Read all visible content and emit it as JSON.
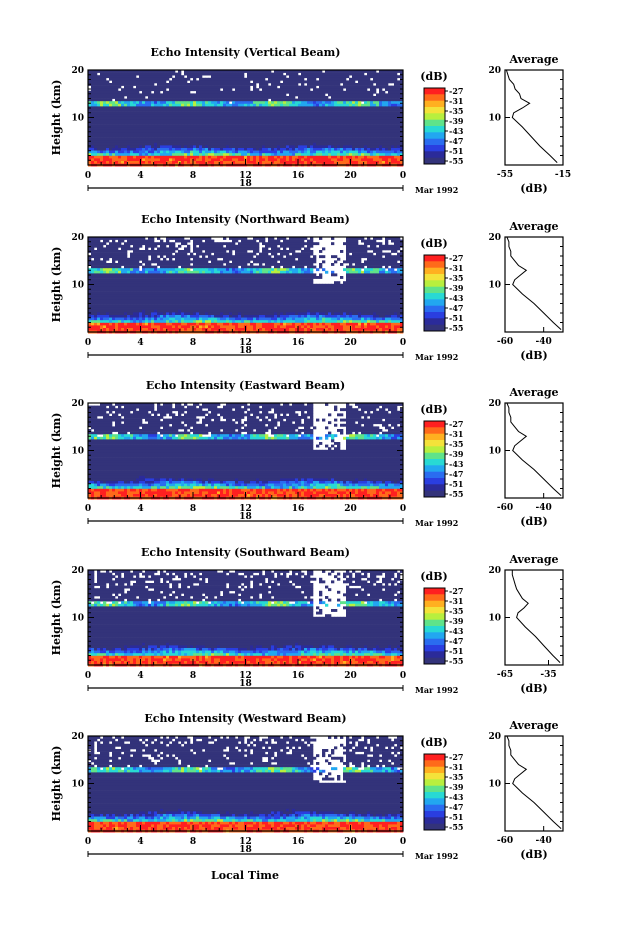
{
  "figure": {
    "xlabel": "Local Time",
    "date_label": "Mar 1992",
    "panel_ylabel": "Height (km)",
    "colorbar_unit": "(dB)",
    "colorbar_ticks": [
      "-27",
      "-31",
      "-35",
      "-39",
      "-43",
      "-47",
      "-51",
      "-55"
    ],
    "colorbar_colors": [
      "#ff2020",
      "#ff6a1a",
      "#ffb020",
      "#f4e23a",
      "#b8ef3e",
      "#5fe38a",
      "#28d9d4",
      "#22a7f0",
      "#2a6cf0",
      "#2a3ee0",
      "#2b2b9a",
      "#33337a"
    ],
    "avg_title": "Average",
    "avg_xlabel": "(dB)"
  },
  "chart_data": [
    {
      "type": "heatmap",
      "title": "Echo Intensity (Vertical Beam)",
      "ylabel": "Height (km)",
      "x_ticks": [
        "0",
        "4",
        "8",
        "12",
        "16",
        "20",
        "0"
      ],
      "y_ticks": [
        "20",
        "10"
      ],
      "day_label": "18",
      "xlim": [
        0,
        24
      ],
      "ylim": [
        0,
        20
      ],
      "colorbar": {
        "unit": "(dB)",
        "range": [
          -55,
          -27
        ]
      },
      "average_profile": {
        "title": "Average",
        "xlabel": "(dB)",
        "xlim": [
          -55,
          -15
        ],
        "x_ticks": [
          "-55",
          "-15"
        ],
        "y_ticks": [
          "20",
          "10"
        ],
        "height_km": [
          0.5,
          2,
          4,
          6,
          8,
          10,
          11,
          12,
          13,
          14,
          15,
          16,
          17,
          18,
          19,
          20
        ],
        "value_db": [
          -19,
          -24,
          -31,
          -37,
          -43,
          -50,
          -49,
          -43,
          -38,
          -44,
          -45,
          -48,
          -49,
          -52,
          -53,
          -54
        ]
      }
    },
    {
      "type": "heatmap",
      "title": "Echo Intensity (Northward Beam)",
      "ylabel": "Height (km)",
      "x_ticks": [
        "0",
        "4",
        "8",
        "12",
        "16",
        "20",
        "0"
      ],
      "y_ticks": [
        "20",
        "10"
      ],
      "day_label": "18",
      "xlim": [
        0,
        24
      ],
      "ylim": [
        0,
        20
      ],
      "colorbar": {
        "unit": "(dB)",
        "range": [
          -55,
          -27
        ]
      },
      "average_profile": {
        "title": "Average",
        "xlabel": "(dB)",
        "xlim": [
          -60,
          -30
        ],
        "x_ticks": [
          "-60",
          "-40"
        ],
        "y_ticks": [
          "20",
          "10"
        ],
        "height_km": [
          0.5,
          2,
          4,
          6,
          8,
          10,
          11,
          12,
          13,
          14,
          15,
          16,
          17,
          18,
          19,
          20
        ],
        "value_db": [
          -31,
          -35,
          -40,
          -45,
          -51,
          -56,
          -55,
          -52,
          -49,
          -53,
          -55,
          -57,
          -57,
          -58,
          -58,
          -59
        ]
      }
    },
    {
      "type": "heatmap",
      "title": "Echo Intensity (Eastward Beam)",
      "ylabel": "Height (km)",
      "x_ticks": [
        "0",
        "4",
        "8",
        "12",
        "16",
        "20",
        "0"
      ],
      "y_ticks": [
        "20",
        "10"
      ],
      "day_label": "18",
      "xlim": [
        0,
        24
      ],
      "ylim": [
        0,
        20
      ],
      "colorbar": {
        "unit": "(dB)",
        "range": [
          -55,
          -27
        ]
      },
      "average_profile": {
        "title": "Average",
        "xlabel": "(dB)",
        "xlim": [
          -60,
          -30
        ],
        "x_ticks": [
          "-60",
          "-40"
        ],
        "y_ticks": [
          "20",
          "10"
        ],
        "height_km": [
          0.5,
          2,
          4,
          6,
          8,
          10,
          11,
          12,
          13,
          14,
          15,
          16,
          17,
          18,
          19,
          20
        ],
        "value_db": [
          -31,
          -35,
          -40,
          -45,
          -51,
          -56,
          -55,
          -52,
          -49,
          -53,
          -55,
          -57,
          -57,
          -58,
          -58,
          -59
        ]
      }
    },
    {
      "type": "heatmap",
      "title": "Echo Intensity (Southward Beam)",
      "ylabel": "Height (km)",
      "x_ticks": [
        "0",
        "4",
        "8",
        "12",
        "16",
        "20",
        "0"
      ],
      "y_ticks": [
        "20",
        "10"
      ],
      "day_label": "18",
      "xlim": [
        0,
        24
      ],
      "ylim": [
        0,
        20
      ],
      "colorbar": {
        "unit": "(dB)",
        "range": [
          -55,
          -27
        ]
      },
      "average_profile": {
        "title": "Average",
        "xlabel": "(dB)",
        "xlim": [
          -65,
          -25
        ],
        "x_ticks": [
          "-65",
          "-35"
        ],
        "y_ticks": [
          "20",
          "10"
        ],
        "height_km": [
          0.5,
          2,
          4,
          6,
          8,
          10,
          11,
          12,
          13,
          14,
          15,
          16,
          17,
          18,
          19,
          20
        ],
        "value_db": [
          -27,
          -32,
          -38,
          -44,
          -51,
          -57,
          -56,
          -52,
          -49,
          -53,
          -55,
          -57,
          -58,
          -59,
          -60,
          -60
        ]
      }
    },
    {
      "type": "heatmap",
      "title": "Echo Intensity (Westward Beam)",
      "ylabel": "Height (km)",
      "x_ticks": [
        "0",
        "4",
        "8",
        "12",
        "16",
        "20",
        "0"
      ],
      "y_ticks": [
        "20",
        "10"
      ],
      "day_label": "18",
      "xlim": [
        0,
        24
      ],
      "ylim": [
        0,
        20
      ],
      "colorbar": {
        "unit": "(dB)",
        "range": [
          -55,
          -27
        ]
      },
      "average_profile": {
        "title": "Average",
        "xlabel": "(dB)",
        "xlim": [
          -60,
          -30
        ],
        "x_ticks": [
          "-60",
          "-40"
        ],
        "y_ticks": [
          "20",
          "10"
        ],
        "height_km": [
          0.5,
          2,
          4,
          6,
          8,
          10,
          11,
          12,
          13,
          14,
          15,
          16,
          17,
          18,
          19,
          20
        ],
        "value_db": [
          -31,
          -35,
          -40,
          -45,
          -51,
          -56,
          -55,
          -52,
          -49,
          -53,
          -55,
          -57,
          -57,
          -58,
          -58,
          -59
        ]
      }
    }
  ]
}
